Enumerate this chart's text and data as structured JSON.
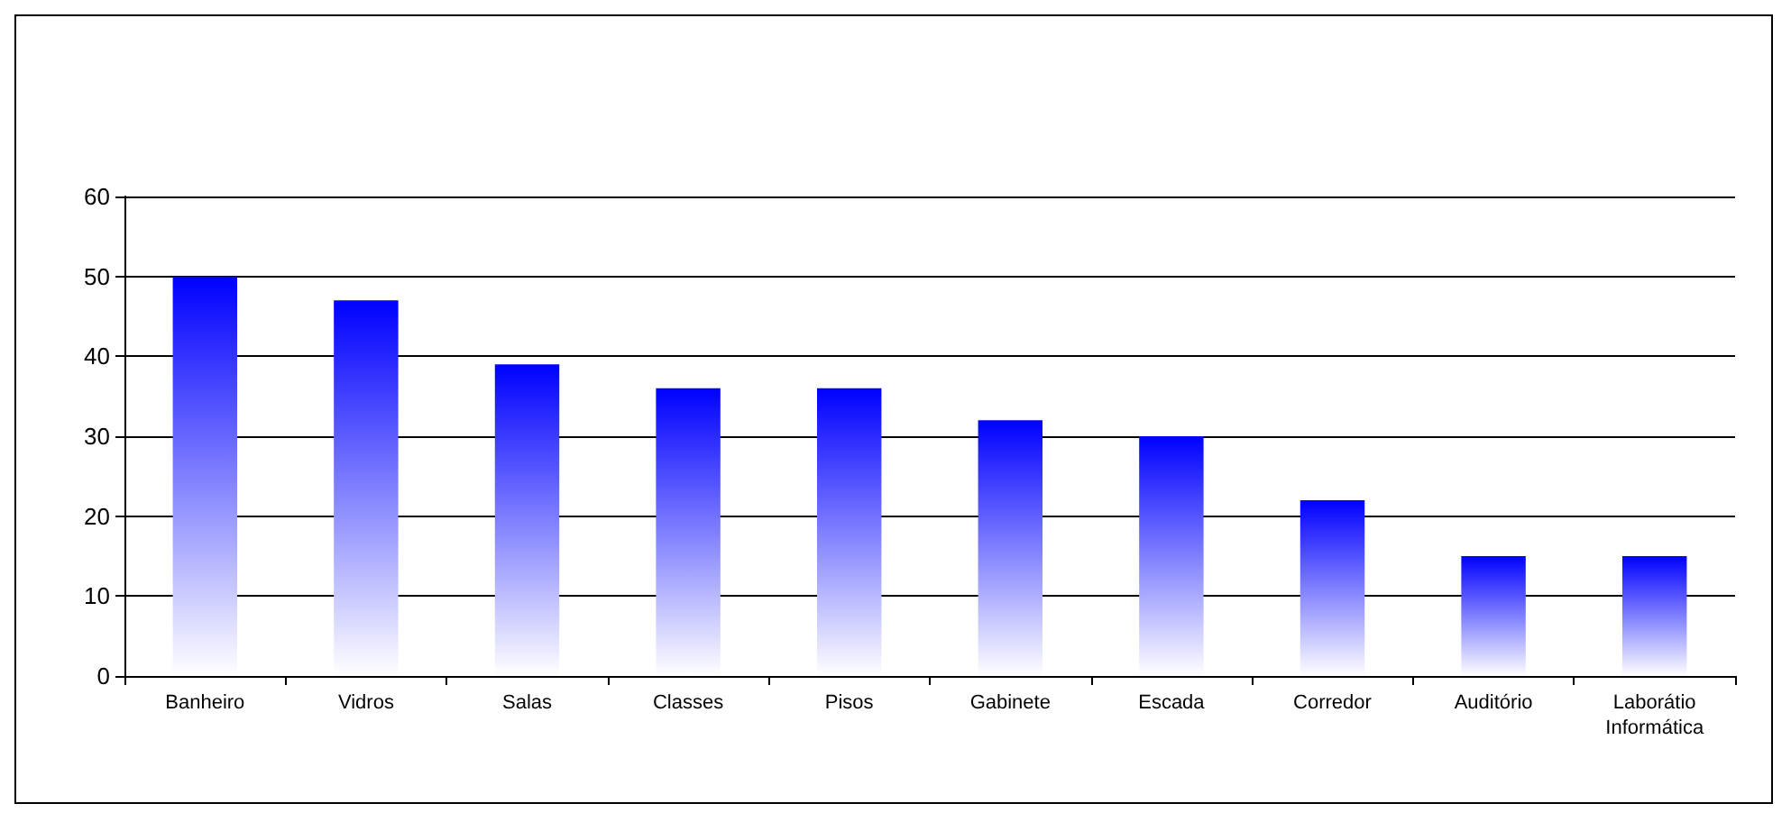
{
  "chart_data": {
    "type": "bar",
    "categories": [
      "Banheiro",
      "Vidros",
      "Salas",
      "Classes",
      "Pisos",
      "Gabinete",
      "Escada",
      "Corredor",
      "Auditório",
      "Laborátio\nInformática"
    ],
    "values": [
      50,
      47,
      39,
      36,
      36,
      32,
      30,
      22,
      15,
      15
    ],
    "color": "#0000ff",
    "ylim": [
      0,
      60
    ],
    "yticks": [
      0,
      10,
      20,
      30,
      40,
      50,
      60
    ],
    "grid": "y"
  }
}
